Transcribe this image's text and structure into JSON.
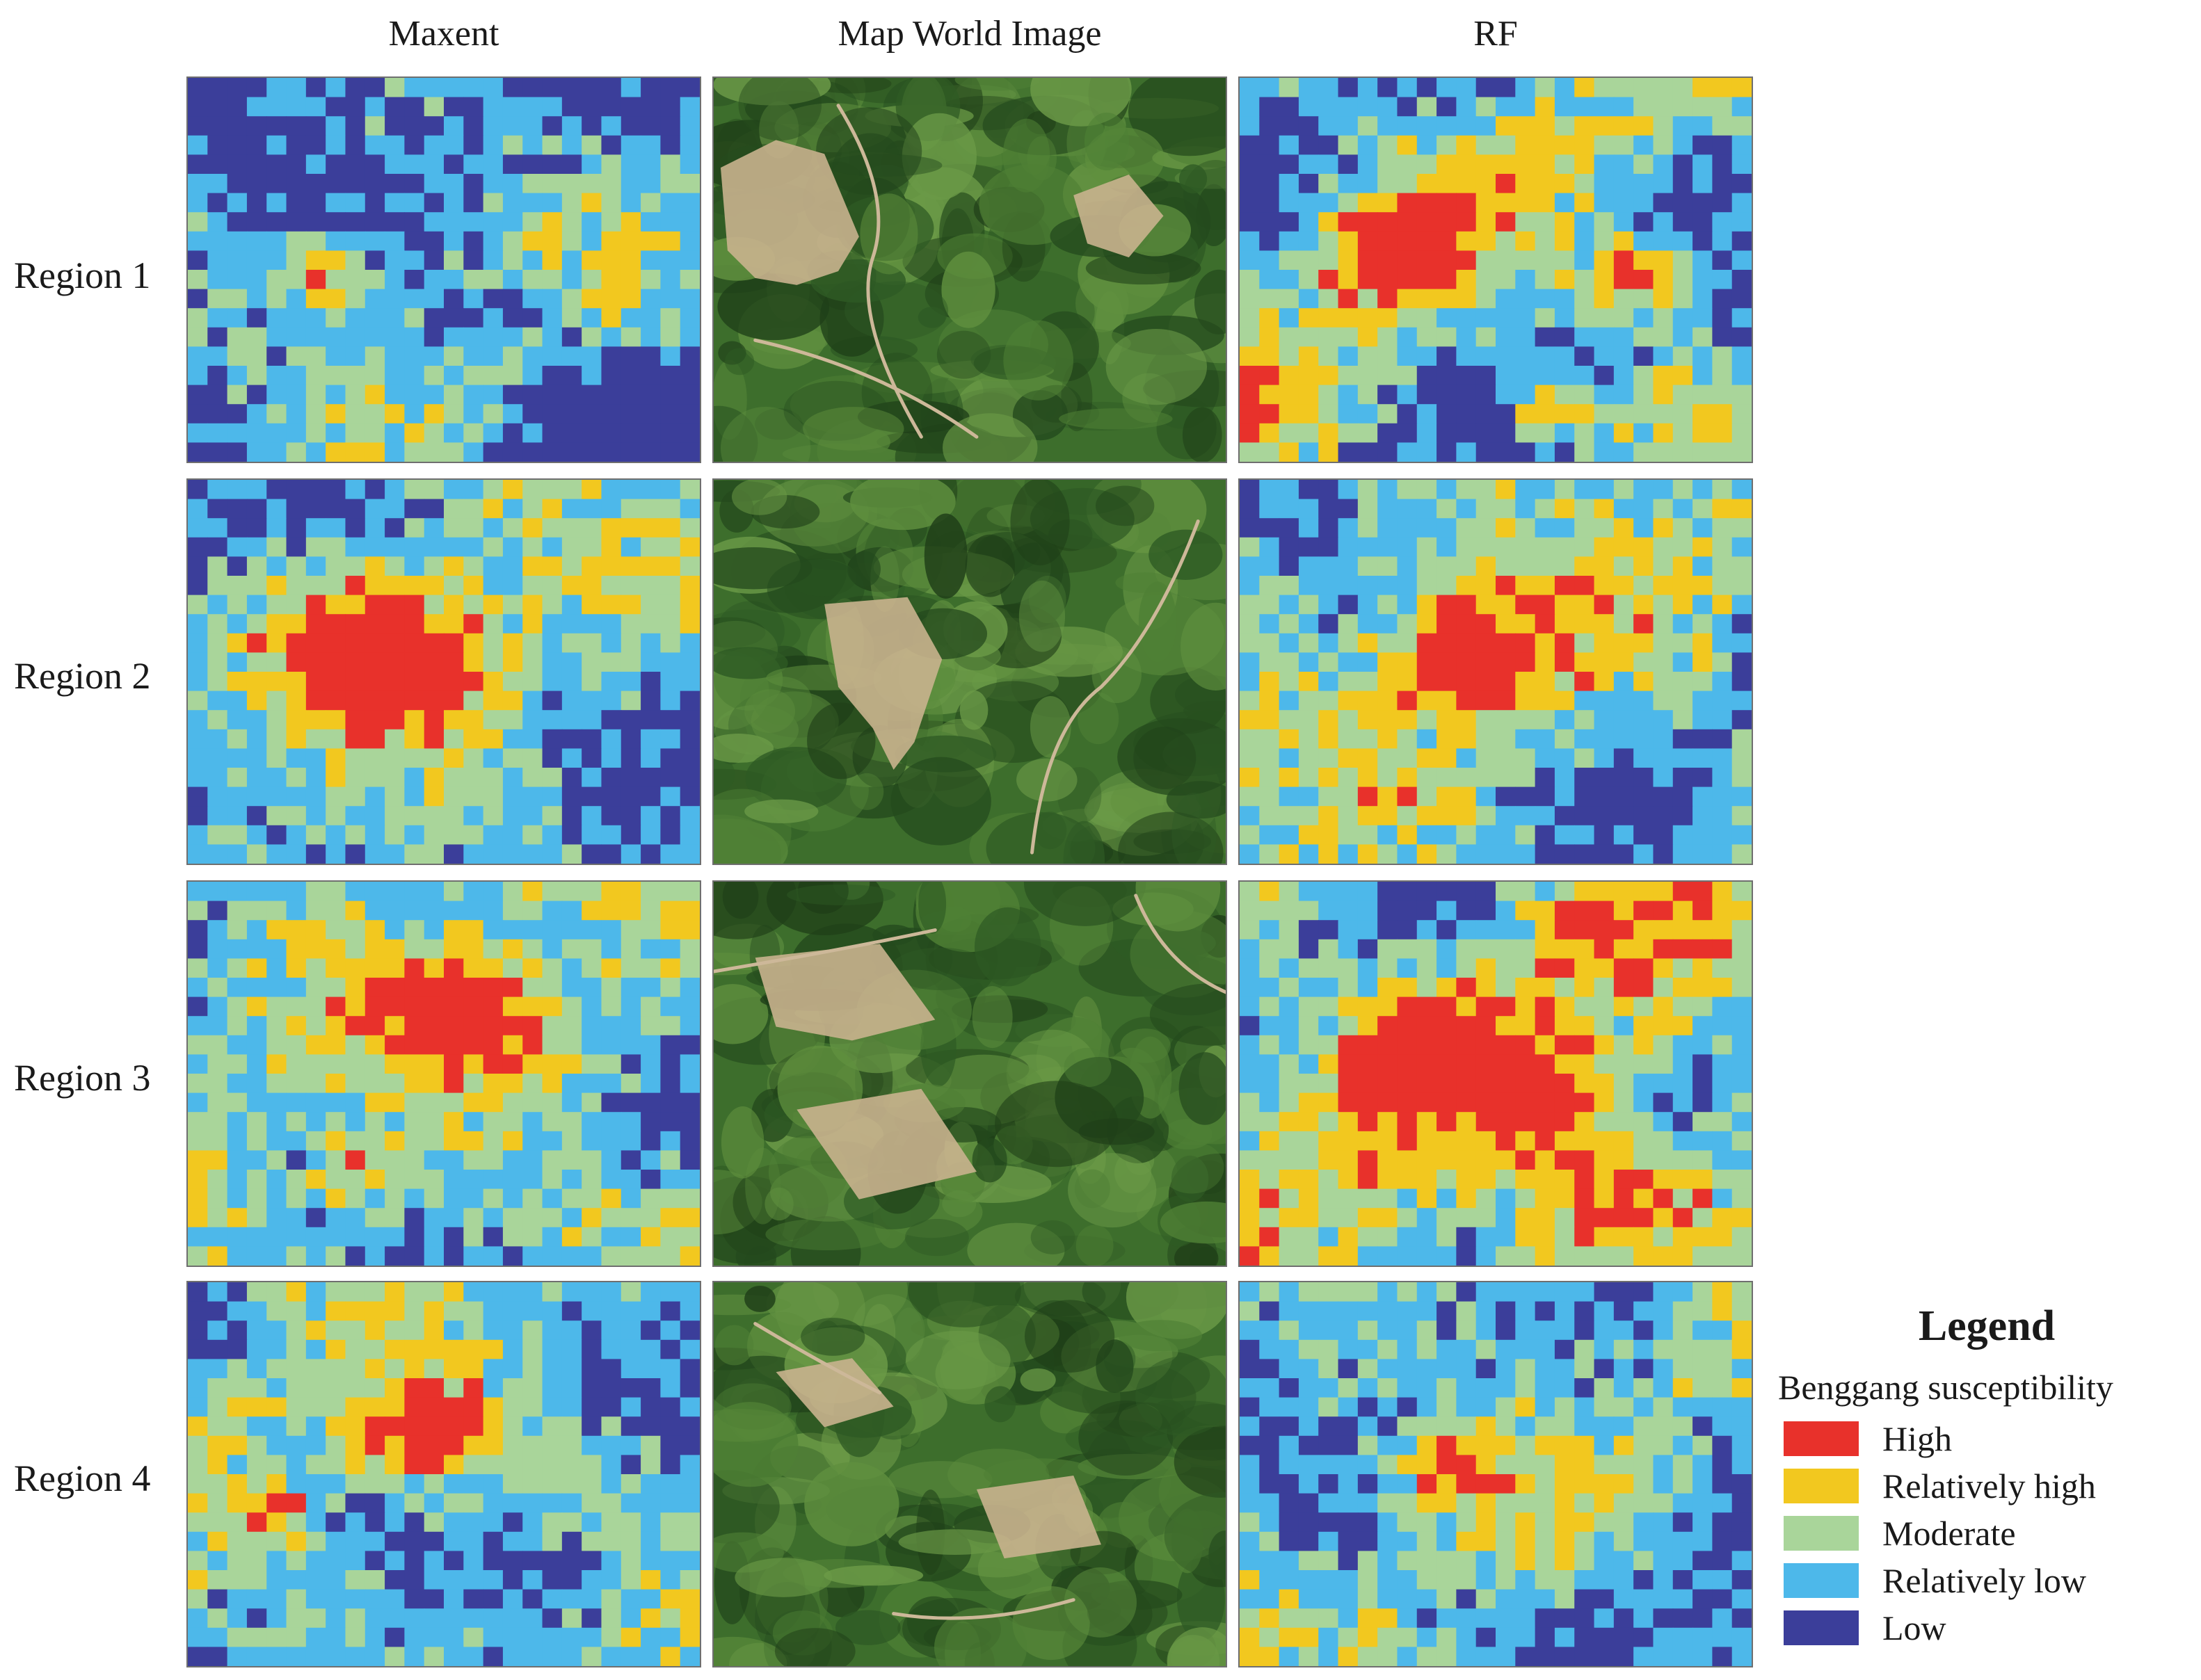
{
  "columns": [
    "Maxent",
    "Map World Image",
    "RF"
  ],
  "rows": [
    "Region 1",
    "Region 2",
    "Region 3",
    "Region 4"
  ],
  "legend": {
    "title": "Legend",
    "subtitle": "Benggang susceptibility",
    "items": [
      {
        "label": "High",
        "color": "#e8312b"
      },
      {
        "label": "Relatively high",
        "color": "#f2c81f"
      },
      {
        "label": "Moderate",
        "color": "#a9d59a"
      },
      {
        "label": "Relatively low",
        "color": "#4db8ea"
      },
      {
        "label": "Low",
        "color": "#3b3e9a"
      }
    ]
  },
  "colors": {
    "border": "#6f6f6f",
    "imagery_forest_dark": "#244a1d",
    "imagery_forest": "#3d6e2c",
    "imagery_bare_soil": "#c9b38e",
    "imagery_road": "#cdb899"
  }
}
